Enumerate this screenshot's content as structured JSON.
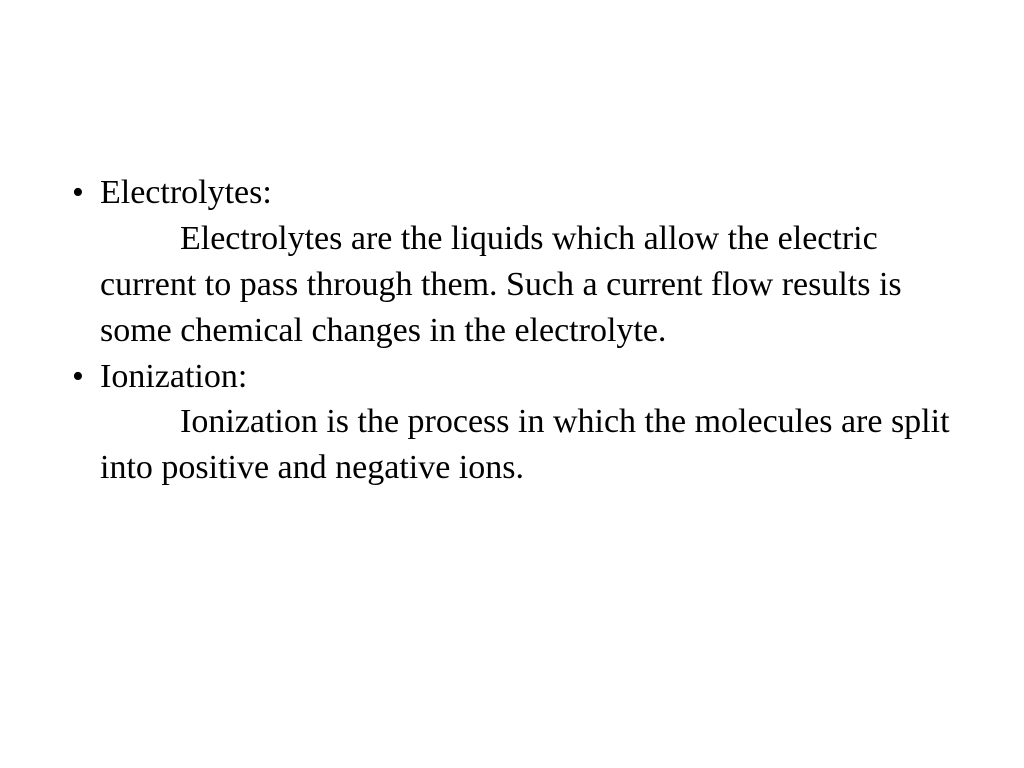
{
  "slide": {
    "font_family": "Times New Roman",
    "font_size_pt": 34,
    "text_color": "#000000",
    "background_color": "#ffffff",
    "items": [
      {
        "term": "Electrolytes:",
        "definition": "Electrolytes are the liquids which allow the electric current to pass through them. Such a current flow results is some chemical changes in the electrolyte."
      },
      {
        "term": "Ionization:",
        "definition": "Ionization is the process in which the molecules are split into positive and negative ions."
      }
    ]
  }
}
